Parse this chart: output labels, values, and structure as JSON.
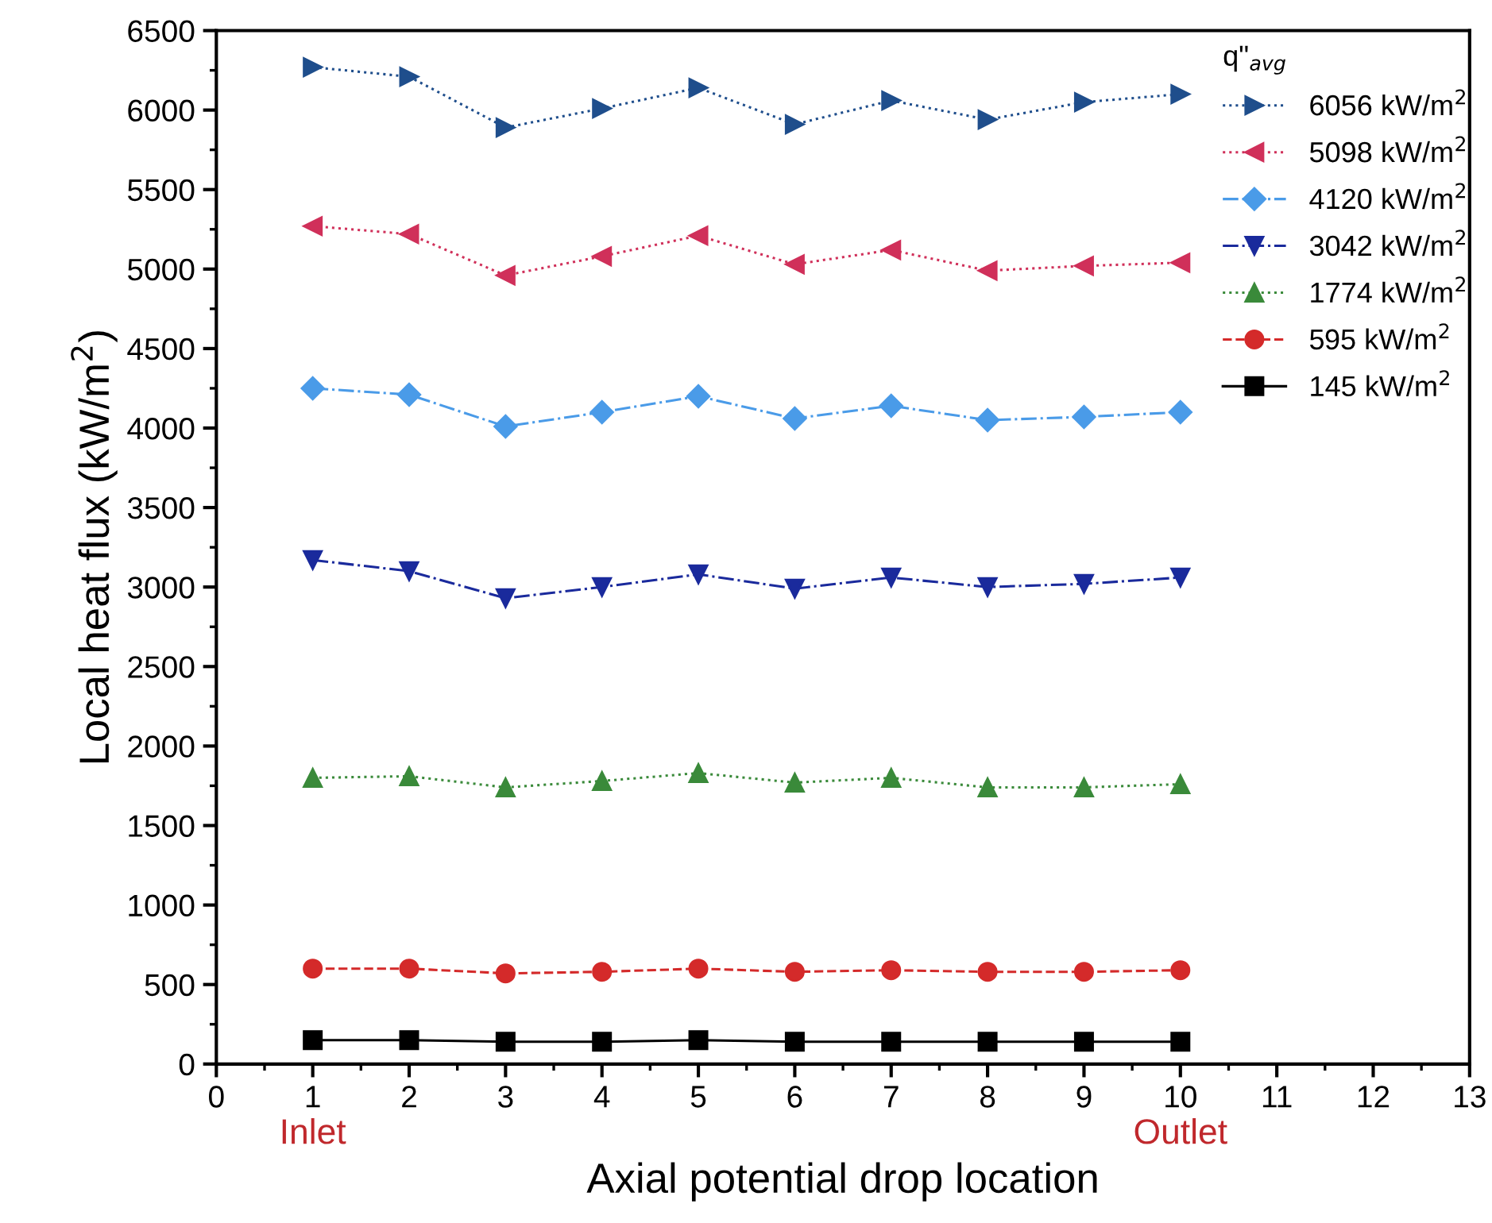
{
  "chart_data": {
    "type": "line",
    "xlabel": "Axial potential drop location",
    "ylabel": "Local heat flux (kW/m$^{2}$)",
    "legend_title": "q\"$_{avg}$",
    "x": [
      1,
      2,
      3,
      4,
      5,
      6,
      7,
      8,
      9,
      10
    ],
    "series": [
      {
        "name": "6056 kW/m$^{2}$",
        "color": "#1f4e8c",
        "marker": "triangle_right",
        "line_style": "dotted",
        "values": [
          6270,
          6210,
          5890,
          6010,
          6140,
          5910,
          6060,
          5940,
          6050,
          6100
        ]
      },
      {
        "name": "5098 kW/m$^{2}$",
        "color": "#d0305a",
        "marker": "triangle_left",
        "line_style": "dotted",
        "values": [
          5270,
          5220,
          4960,
          5080,
          5210,
          5030,
          5120,
          4990,
          5020,
          5040
        ]
      },
      {
        "name": "4120 kW/m$^{2}$",
        "color": "#4a9be8",
        "marker": "diamond",
        "line_style": "dashdot",
        "values": [
          4250,
          4210,
          4010,
          4100,
          4200,
          4060,
          4140,
          4050,
          4070,
          4100
        ]
      },
      {
        "name": "3042 kW/m$^{2}$",
        "color": "#1a2a9c",
        "marker": "triangle_down",
        "line_style": "dashdot",
        "values": [
          3170,
          3100,
          2930,
          3000,
          3080,
          2990,
          3060,
          3000,
          3020,
          3060
        ]
      },
      {
        "name": "1774 kW/m$^{2}$",
        "color": "#3a8a3a",
        "marker": "triangle",
        "line_style": "dotted",
        "values": [
          1800,
          1810,
          1740,
          1780,
          1830,
          1770,
          1800,
          1740,
          1740,
          1760
        ]
      },
      {
        "name": "595 kW/m$^{2}$",
        "color": "#d42a2a",
        "marker": "circle",
        "line_style": "dashed",
        "values": [
          600,
          600,
          570,
          580,
          600,
          580,
          590,
          580,
          580,
          590
        ]
      },
      {
        "name": "145 kW/m$^{2}$",
        "color": "#000000",
        "marker": "square",
        "line_style": "solid",
        "values": [
          150,
          150,
          140,
          140,
          150,
          140,
          140,
          140,
          140,
          140
        ]
      }
    ],
    "xlim": [
      0,
      13
    ],
    "xticks": [
      0,
      1,
      2,
      3,
      4,
      5,
      6,
      7,
      8,
      9,
      10,
      11,
      12,
      13
    ],
    "ylim": [
      0,
      6500
    ],
    "yticks": [
      0,
      500,
      1000,
      1500,
      2000,
      2500,
      3000,
      3500,
      4000,
      4500,
      5000,
      5500,
      6000,
      6500
    ],
    "annotations": [
      "Inlet",
      "Outlet"
    ],
    "legend": "top right",
    "grid": false
  }
}
